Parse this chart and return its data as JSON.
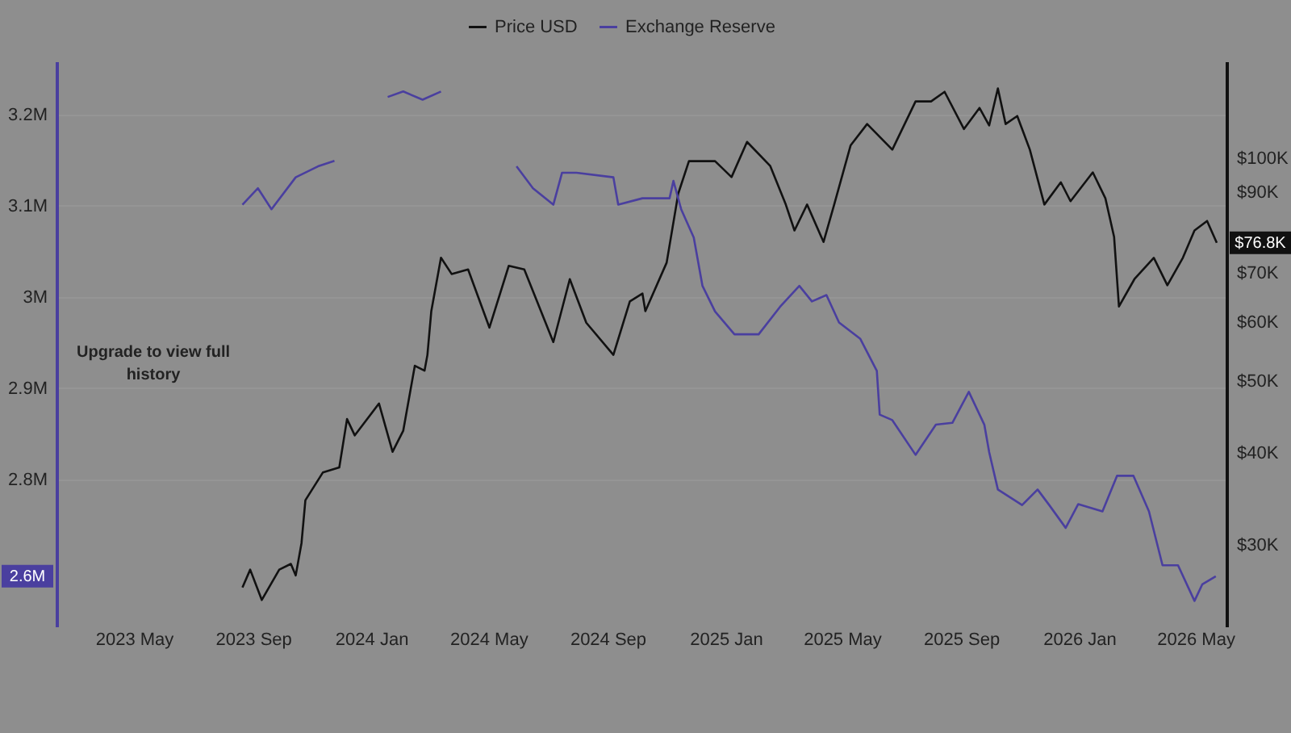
{
  "chart_data": {
    "type": "line",
    "legend": "top",
    "grid": "y",
    "log": "y2",
    "xlim": [
      "2023-02-10",
      "2026-06-02"
    ],
    "xticks": [
      {
        "value": "2023-05-01",
        "label": "2023 May"
      },
      {
        "value": "2023-09-01",
        "label": "2023 Sep"
      },
      {
        "value": "2024-01-01",
        "label": "2024 Jan"
      },
      {
        "value": "2024-05-01",
        "label": "2024 May"
      },
      {
        "value": "2024-09-01",
        "label": "2024 Sep"
      },
      {
        "value": "2025-01-01",
        "label": "2025 Jan"
      },
      {
        "value": "2025-05-01",
        "label": "2025 May"
      },
      {
        "value": "2025-09-01",
        "label": "2025 Sep"
      },
      {
        "value": "2026-01-01",
        "label": "2026 Jan"
      },
      {
        "value": "2026-05-01",
        "label": "2026 May"
      }
    ],
    "ylim": [
      2.639,
      3.258
    ],
    "yticks": [
      {
        "value": 2.8,
        "label": "2.8M"
      },
      {
        "value": 2.9,
        "label": "2.9M"
      },
      {
        "value": 3.0,
        "label": "3M"
      },
      {
        "value": 3.1,
        "label": "3.1M"
      },
      {
        "value": 3.2,
        "label": "3.2M"
      }
    ],
    "y2lim": [
      23.3,
      135
    ],
    "y2ticks": [
      {
        "value": 30,
        "label": "$30K"
      },
      {
        "value": 40,
        "label": "$40K"
      },
      {
        "value": 50,
        "label": "$50K"
      },
      {
        "value": 60,
        "label": "$60K"
      },
      {
        "value": 70,
        "label": "$70K"
      },
      {
        "value": 90,
        "label": "$90K"
      },
      {
        "value": 100,
        "label": "$100K"
      }
    ],
    "annotations": [
      "Upgrade to view full history",
      "2.6M",
      "$76.8K"
    ],
    "series": [
      {
        "name": "Price USD",
        "color": "#111111",
        "axis": "y2",
        "x": [
          "2023-08-21",
          "2023-08-29",
          "2023-09-10",
          "2023-09-28",
          "2023-10-10",
          "2023-10-15",
          "2023-10-21",
          "2023-10-25",
          "2023-11-12",
          "2023-11-29",
          "2023-12-07",
          "2023-12-15",
          "2024-01-09",
          "2024-01-23",
          "2024-02-03",
          "2024-02-15",
          "2024-02-25",
          "2024-02-28",
          "2024-03-03",
          "2024-03-13",
          "2024-03-24",
          "2024-04-10",
          "2024-05-02",
          "2024-05-22",
          "2024-06-07",
          "2024-07-07",
          "2024-07-24",
          "2024-08-10",
          "2024-09-07",
          "2024-09-24",
          "2024-10-07",
          "2024-10-10",
          "2024-11-01",
          "2024-11-13",
          "2024-11-24",
          "2024-12-21",
          "2025-01-07",
          "2025-01-23",
          "2025-02-16",
          "2025-03-04",
          "2025-03-13",
          "2025-03-26",
          "2025-04-12",
          "2025-04-23",
          "2025-05-10",
          "2025-05-27",
          "2025-06-22",
          "2025-07-16",
          "2025-08-01",
          "2025-08-15",
          "2025-09-04",
          "2025-09-20",
          "2025-09-30",
          "2025-10-09",
          "2025-10-17",
          "2025-10-29",
          "2025-11-11",
          "2025-11-26",
          "2025-12-13",
          "2025-12-23",
          "2026-01-15",
          "2026-01-28",
          "2026-02-06",
          "2026-02-11",
          "2026-02-27",
          "2026-03-19",
          "2026-04-02",
          "2026-04-18",
          "2026-04-30",
          "2026-05-13",
          "2026-05-23"
        ],
        "values": [
          26.3,
          27.8,
          25.3,
          27.8,
          28.3,
          27.3,
          30.2,
          34.5,
          37.6,
          38.2,
          44.4,
          42.2,
          46.6,
          40.1,
          42.8,
          52.4,
          51.6,
          54.2,
          62.1,
          73.3,
          69.7,
          70.7,
          59.0,
          71.5,
          70.7,
          56.4,
          68.6,
          59.9,
          54.2,
          64.0,
          65.6,
          62.1,
          72.2,
          89.5,
          99.0,
          99.0,
          94.2,
          105.1,
          97.5,
          86.5,
          79.8,
          86.5,
          77.0,
          86.5,
          104.0,
          111.1,
          102.6,
          119.2,
          119.2,
          122.8,
          109.4,
          116.8,
          110.6,
          124.1,
          111.1,
          113.9,
          102.6,
          86.5,
          92.7,
          87.4,
          95.6,
          88.2,
          78.2,
          63.0,
          68.6,
          73.3,
          67.3,
          73.3,
          79.8,
          82.2,
          76.8
        ]
      },
      {
        "name": "Exchange Reserve",
        "color": "#4a3f9f",
        "x": [
          "2023-08-21",
          "2023-09-06",
          "2023-09-20",
          "2023-10-15",
          "2023-11-07",
          "2023-11-24",
          "2023-12-15",
          "2024-01-18",
          "2024-02-03",
          "2024-02-23",
          "2024-03-13",
          "2024-04-27",
          "2024-05-30",
          "2024-06-16",
          "2024-07-07",
          "2024-07-16",
          "2024-07-31",
          "2024-09-07",
          "2024-09-12",
          "2024-10-07",
          "2024-11-04",
          "2024-11-08",
          "2024-11-16",
          "2024-11-29",
          "2024-12-08",
          "2024-12-21",
          "2025-01-10",
          "2025-02-04",
          "2025-02-26",
          "2025-03-18",
          "2025-03-31",
          "2025-04-15",
          "2025-04-28",
          "2025-05-20",
          "2025-06-06",
          "2025-06-09",
          "2025-06-22",
          "2025-07-16",
          "2025-08-06",
          "2025-08-23",
          "2025-09-09",
          "2025-09-25",
          "2025-09-30",
          "2025-10-09",
          "2025-11-03",
          "2025-11-19",
          "2025-12-01",
          "2025-12-18",
          "2025-12-31",
          "2026-01-25",
          "2026-02-09",
          "2026-02-26",
          "2026-03-14",
          "2026-03-28",
          "2026-04-13",
          "2026-04-30",
          "2026-05-08",
          "2026-05-22"
        ],
        "values": [
          3.101,
          3.119,
          3.096,
          3.131,
          3.143,
          3.149,
          null,
          3.219,
          3.225,
          3.216,
          3.225,
          null,
          3.143,
          3.119,
          3.101,
          3.136,
          3.136,
          3.131,
          3.101,
          3.108,
          3.108,
          3.127,
          3.096,
          3.065,
          3.012,
          2.984,
          2.959,
          2.959,
          2.989,
          3.012,
          2.995,
          3.002,
          2.972,
          2.954,
          2.919,
          2.871,
          2.865,
          2.827,
          2.86,
          2.862,
          2.896,
          2.86,
          2.83,
          2.789,
          2.772,
          2.789,
          2.772,
          2.747,
          2.773,
          2.765,
          2.804,
          2.804,
          2.765,
          2.706,
          2.706,
          2.667,
          2.685,
          2.694
        ]
      }
    ]
  }
}
